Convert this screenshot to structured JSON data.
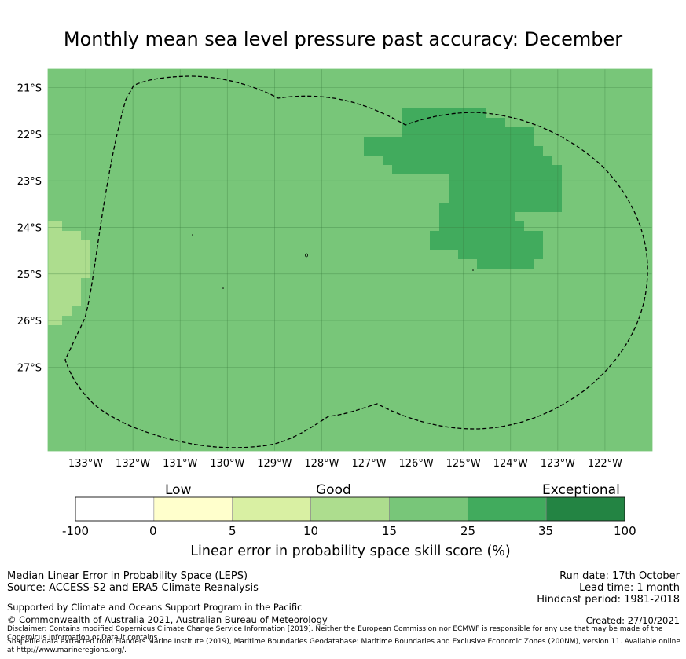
{
  "title": "Monthly mean sea level pressure past accuracy: December",
  "map": {
    "lon_labels": [
      "133°W",
      "132°W",
      "131°W",
      "130°W",
      "129°W",
      "128°W",
      "127°W",
      "126°W",
      "125°W",
      "124°W",
      "123°W",
      "122°W"
    ],
    "lat_labels": [
      "21°S",
      "22°S",
      "23°S",
      "24°S",
      "25°S",
      "26°S",
      "27°S"
    ],
    "lon_values": [
      -133,
      -132,
      -131,
      -130,
      -129,
      -128,
      -127,
      -126,
      -125,
      -124,
      -123,
      -122
    ],
    "lat_values": [
      -21,
      -22,
      -23,
      -24,
      -25,
      -26,
      -27
    ],
    "lon_range": [
      -133.8,
      -121.0
    ],
    "lat_range": [
      -20.6,
      -28.8
    ],
    "base_category": "15-25",
    "base_color": "#78c679",
    "region_outline": "Maritime boundary (EEZ) - dashed",
    "patches": [
      {
        "category": "10-15",
        "color": "#addd8e",
        "region": "west edge, ~24.8°S"
      },
      {
        "category": "25-35",
        "color": "#41ab5d",
        "region": "north-east, 126.5°W-123°W, 21.3°S-24.7°S"
      }
    ]
  },
  "colorbar": {
    "category_labels": [
      {
        "label": "Low",
        "at": 0.5
      },
      {
        "label": "Good",
        "at": 2.5
      },
      {
        "label": "Exceptional",
        "at": 5.5
      }
    ],
    "ticks": [
      "-100",
      "0",
      "5",
      "10",
      "15",
      "25",
      "35",
      "100"
    ],
    "colors": [
      "#ffffff",
      "#ffffcc",
      "#d9f0a3",
      "#addd8e",
      "#78c679",
      "#41ab5d",
      "#238443"
    ],
    "axis_label": "Linear error in probability space skill score (%)"
  },
  "footer": {
    "left": [
      "Median Linear Error in Probability Space (LEPS)",
      "Source: ACCESS-S2 and ERA5 Climate Reanalysis"
    ],
    "right": [
      "Run date: 17th October",
      "Lead time: 1 month",
      "Hindcast period: 1981-2018"
    ],
    "support": "Supported by Climate and Oceans Support Program in the Pacific",
    "copyright": "© Commonwealth of Australia 2021, Australian Bureau of Meteorology",
    "created": "Created: 27/10/2021",
    "disclaimer": "Disclaimer: Contains modified Copernicus Climate Change Service Information [2019]. Neither the European Commission nor ECMWF is responsible for any use that may be made of the Copernicus Information or Data it contains.",
    "shapefile": "Shapefile data extracted from Flanders Marine Institute (2019), Maritime Boundaries Geodatabase: Maritime Boundaries and Exclusive Economic Zones (200NM), version 11. Available online at http://www.marineregions.org/."
  }
}
